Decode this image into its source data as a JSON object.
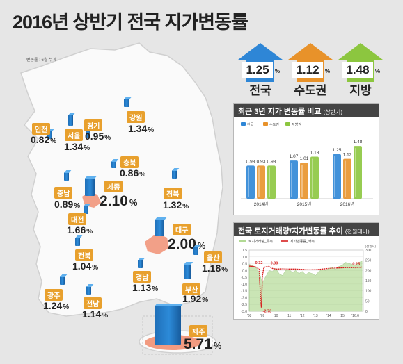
{
  "title": "2016년 상반기 전국 지가변동률",
  "note": "변동률 : 6월 누계",
  "headline": [
    {
      "label": "전국",
      "value": "1.25",
      "unit": "%",
      "color": "#2e86d6"
    },
    {
      "label": "수도권",
      "value": "1.12",
      "unit": "%",
      "color": "#e8922a"
    },
    {
      "label": "지방",
      "value": "1.48",
      "unit": "%",
      "color": "#8cc63f"
    }
  ],
  "regions": [
    {
      "name": "인천",
      "value": "0.82"
    },
    {
      "name": "서울",
      "value": "1.34"
    },
    {
      "name": "경기",
      "value": "0.95"
    },
    {
      "name": "강원",
      "value": "1.34"
    },
    {
      "name": "충북",
      "value": "0.86"
    },
    {
      "name": "충남",
      "value": "0.89"
    },
    {
      "name": "세종",
      "value": "2.10"
    },
    {
      "name": "경북",
      "value": "1.32"
    },
    {
      "name": "대전",
      "value": "1.66"
    },
    {
      "name": "대구",
      "value": "2.00"
    },
    {
      "name": "전북",
      "value": "1.04"
    },
    {
      "name": "울산",
      "value": "1.18"
    },
    {
      "name": "경남",
      "value": "1.13"
    },
    {
      "name": "부산",
      "value": "1.92"
    },
    {
      "name": "광주",
      "value": "1.24"
    },
    {
      "name": "전남",
      "value": "1.14"
    },
    {
      "name": "제주",
      "value": "5.71"
    }
  ],
  "unit": "%",
  "chart_data": [
    {
      "type": "bar",
      "title": "최근 3년 지가 변동률 비교",
      "subtitle": "(상반기)",
      "categories": [
        "2014년",
        "2015년",
        "2016년"
      ],
      "series": [
        {
          "name": "전국",
          "values": [
            0.93,
            1.07,
            1.25
          ],
          "color": "#2e86d6"
        },
        {
          "name": "수도권",
          "values": [
            0.93,
            1.01,
            1.12
          ],
          "color": "#e8922a"
        },
        {
          "name": "지방권",
          "values": [
            0.93,
            1.18,
            1.48
          ],
          "color": "#8cc63f"
        }
      ],
      "value_labels": [
        [
          "0.93",
          "0.93",
          "0.93"
        ],
        [
          "1.07",
          "1.01",
          "1.18"
        ],
        [
          "1.25",
          "1.12",
          "1.48"
        ]
      ],
      "ylim": [
        0,
        1.6
      ],
      "legend": "top-left"
    },
    {
      "type": "line",
      "title": "전국 토지거래량/지가변동률 추이",
      "subtitle": "(전월대비)",
      "x_ticks": [
        "'08",
        "'09",
        "'10",
        "'11",
        "'12",
        "'13",
        "'14",
        "'15",
        "'16.6"
      ],
      "series": [
        {
          "name": "토지거래량_우측",
          "kind": "area",
          "color": "#9fd17a",
          "x": [
            2008.0,
            2008.25,
            2008.5,
            2008.75,
            2008.9,
            2009.0,
            2009.25,
            2009.5,
            2009.75,
            2010.0,
            2010.25,
            2010.5,
            2010.75,
            2011.0,
            2011.25,
            2011.5,
            2011.75,
            2012.0,
            2012.25,
            2012.5,
            2012.75,
            2013.0,
            2013.25,
            2013.5,
            2013.75,
            2014.0,
            2014.25,
            2014.5,
            2014.75,
            2015.0,
            2015.25,
            2015.5,
            2015.75,
            2016.0,
            2016.25,
            2016.5
          ],
          "y": [
            230,
            225,
            215,
            190,
            160,
            140,
            170,
            200,
            195,
            210,
            185,
            175,
            200,
            205,
            190,
            200,
            185,
            195,
            180,
            190,
            185,
            175,
            195,
            205,
            200,
            210,
            215,
            205,
            220,
            225,
            240,
            235,
            230,
            225,
            240,
            245
          ]
        },
        {
          "name": "지가변동률_좌측",
          "kind": "line",
          "color": "#d62020",
          "x": [
            2008.0,
            2008.25,
            2008.5,
            2008.75,
            2008.83,
            2008.92,
            2009.0,
            2009.1,
            2009.25,
            2009.5,
            2009.75,
            2010.0,
            2010.5,
            2011.0,
            2011.5,
            2012.0,
            2012.5,
            2013.0,
            2013.5,
            2014.0,
            2014.5,
            2015.0,
            2015.5,
            2016.0,
            2016.5
          ],
          "y": [
            0.32,
            0.3,
            0.25,
            0.1,
            -1.5,
            -2.73,
            -0.4,
            0.2,
            0.28,
            0.3,
            0.15,
            0.1,
            0.12,
            0.1,
            0.1,
            0.08,
            0.05,
            0.05,
            0.1,
            0.15,
            0.18,
            0.2,
            0.22,
            0.2,
            0.25
          ]
        }
      ],
      "annotations": [
        "0.32",
        "0.30",
        "-2.73",
        "0.25"
      ],
      "left_axis": {
        "label": "",
        "ticks": [
          "1.5",
          "1.0",
          "0.5",
          "0.0",
          "-0.5",
          "-1.0",
          "-1.5",
          "-2.0",
          "-2.5",
          "-3.0"
        ],
        "range": [
          -3.0,
          1.5
        ]
      },
      "right_axis": {
        "label": "(천필지)",
        "ticks": [
          "300",
          "250",
          "200",
          "150",
          "100",
          "50",
          "0"
        ],
        "range": [
          0,
          300
        ]
      },
      "xlim": [
        2008.0,
        2016.6
      ]
    }
  ]
}
